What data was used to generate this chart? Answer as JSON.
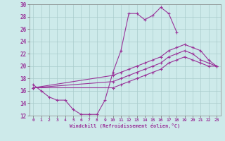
{
  "xlabel": "Windchill (Refroidissement éolien,°C)",
  "bg_color": "#cdeaea",
  "line_color": "#993399",
  "grid_color": "#aacccc",
  "xlim": [
    -0.5,
    23.5
  ],
  "ylim": [
    12,
    30
  ],
  "xticks": [
    0,
    1,
    2,
    3,
    4,
    5,
    6,
    7,
    8,
    9,
    10,
    11,
    12,
    13,
    14,
    15,
    16,
    17,
    18,
    19,
    20,
    21,
    22,
    23
  ],
  "yticks": [
    12,
    14,
    16,
    18,
    20,
    22,
    24,
    26,
    28,
    30
  ],
  "series": [
    {
      "x": [
        0,
        1,
        2,
        3,
        4,
        5,
        6,
        7,
        8,
        9,
        10,
        11,
        12,
        13,
        14,
        15,
        16,
        17,
        18
      ],
      "y": [
        17,
        16,
        15,
        14.5,
        14.5,
        13,
        12.2,
        12.2,
        12.2,
        14.5,
        19,
        22.5,
        28.5,
        28.5,
        27.5,
        28.2,
        29.5,
        28.5,
        25.5
      ]
    },
    {
      "x": [
        0,
        10,
        11,
        12,
        13,
        14,
        15,
        16,
        17,
        18,
        19,
        20,
        21,
        22,
        23
      ],
      "y": [
        16.5,
        18.5,
        19,
        19.5,
        20,
        20.5,
        21,
        21.5,
        22.5,
        23,
        23.5,
        23,
        22.5,
        21,
        20
      ]
    },
    {
      "x": [
        0,
        10,
        11,
        12,
        13,
        14,
        15,
        16,
        17,
        18,
        19,
        20,
        21,
        22,
        23
      ],
      "y": [
        16.5,
        17.5,
        18,
        18.5,
        19,
        19.5,
        20,
        20.5,
        21.5,
        22,
        22.5,
        22,
        21,
        20.5,
        20
      ]
    },
    {
      "x": [
        0,
        10,
        11,
        12,
        13,
        14,
        15,
        16,
        17,
        18,
        19,
        20,
        21,
        22,
        23
      ],
      "y": [
        16.5,
        16.5,
        17,
        17.5,
        18,
        18.5,
        19,
        19.5,
        20.5,
        21,
        21.5,
        21,
        20.5,
        20,
        20
      ]
    }
  ]
}
